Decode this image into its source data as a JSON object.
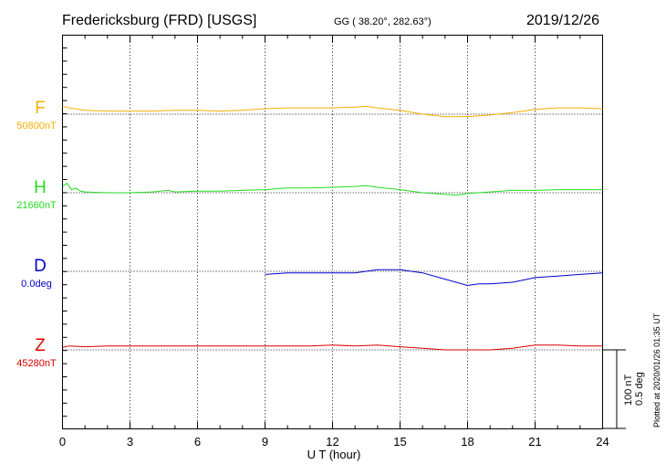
{
  "header": {
    "station": "Fredericksburg (FRD)  [USGS]",
    "coords": "GG ( 38.20°, 282.63°)",
    "date": "2019/12/26"
  },
  "footer": {
    "plotted": "Plotted at 2020/01/26 01:35 UT",
    "scale_nt": "100 nT",
    "scale_deg": "0.5 deg"
  },
  "chart_data": {
    "type": "line",
    "xlabel": "U T (hour)",
    "xlim": [
      0,
      24
    ],
    "xticks": [
      0,
      3,
      6,
      9,
      12,
      15,
      18,
      21,
      24
    ],
    "x_minor_step": 1,
    "y_units_per_scale_bar": {
      "nT": 100,
      "deg": 0.5
    },
    "grid": true,
    "series": [
      {
        "name": "F",
        "baseline_label": "50800nT",
        "baseline": 50800,
        "color": "#f5b000",
        "x": [
          0,
          0.3,
          1,
          2,
          3,
          4,
          5,
          6,
          7,
          8,
          9,
          10,
          11,
          12,
          13,
          13.5,
          14,
          15,
          16,
          17,
          18,
          19,
          20,
          21,
          22,
          23,
          24
        ],
        "y": [
          50810,
          50808,
          50805,
          50804,
          50804,
          50804,
          50805,
          50805,
          50804,
          50805,
          50807,
          50808,
          50808,
          50808,
          50809,
          50810,
          50808,
          50805,
          50800,
          50797,
          50797,
          50799,
          50802,
          50806,
          50808,
          50808,
          50807
        ]
      },
      {
        "name": "H",
        "baseline_label": "21660nT",
        "baseline": 21660,
        "color": "#22dd22",
        "x": [
          0,
          0.2,
          0.4,
          0.6,
          0.8,
          1,
          2,
          3,
          4,
          4.7,
          5,
          6,
          7,
          8,
          9,
          10,
          11,
          12,
          13,
          13.5,
          14,
          15,
          16,
          17,
          17.5,
          18,
          19,
          20,
          21,
          22,
          23,
          24
        ],
        "y": [
          21668,
          21672,
          21664,
          21666,
          21662,
          21661,
          21660,
          21660,
          21661,
          21663,
          21661,
          21662,
          21662,
          21663,
          21664,
          21666,
          21666,
          21667,
          21668,
          21669,
          21667,
          21664,
          21660,
          21658,
          21657,
          21659,
          21661,
          21663,
          21663,
          21664,
          21664,
          21664
        ]
      },
      {
        "name": "D",
        "baseline_label": "0.0deg",
        "baseline": 0.0,
        "color": "#0000cc",
        "x": [
          9,
          10,
          11,
          12,
          13,
          14,
          15,
          16,
          17,
          18,
          18.5,
          19,
          20,
          21,
          22,
          23,
          24
        ],
        "y": [
          -0.02,
          -0.01,
          -0.01,
          -0.01,
          -0.01,
          0.01,
          0.01,
          -0.01,
          -0.05,
          -0.09,
          -0.08,
          -0.08,
          -0.07,
          -0.04,
          -0.03,
          -0.02,
          -0.01
        ]
      },
      {
        "name": "Z",
        "baseline_label": "45280nT",
        "baseline": 45280,
        "color": "#dd0000",
        "x": [
          0,
          0.3,
          1,
          2,
          3,
          4,
          5,
          6,
          7,
          8,
          9,
          10,
          11,
          12,
          13,
          14,
          15,
          16,
          17,
          18,
          19,
          20,
          21,
          22,
          23,
          24
        ],
        "y": [
          45283,
          45285,
          45284,
          45285,
          45285,
          45285,
          45285,
          45285,
          45285,
          45285,
          45285,
          45285,
          45285,
          45286,
          45285,
          45286,
          45284,
          45282,
          45280,
          45280,
          45280,
          45282,
          45286,
          45286,
          45285,
          45285
        ]
      }
    ]
  }
}
